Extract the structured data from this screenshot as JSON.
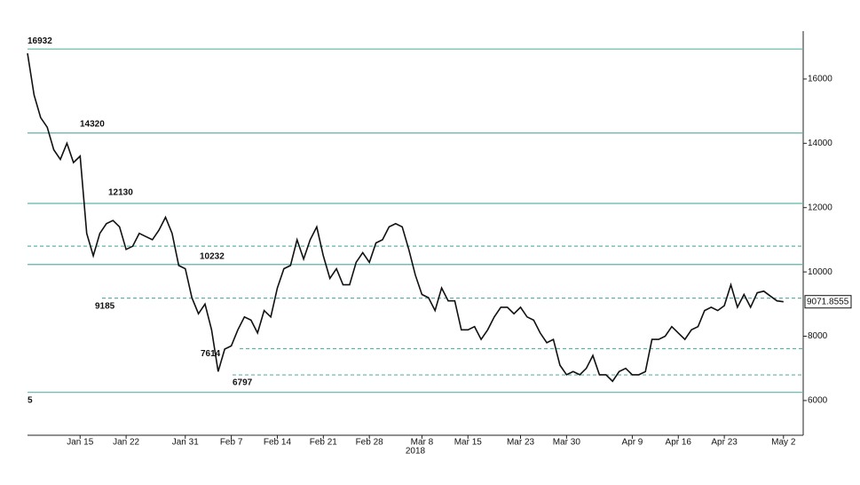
{
  "chart_data": {
    "type": "line",
    "x_label": "2018",
    "x": [
      "2018-01-07",
      "2018-01-08",
      "2018-01-09",
      "2018-01-10",
      "2018-01-11",
      "2018-01-12",
      "2018-01-13",
      "2018-01-14",
      "2018-01-15",
      "2018-01-16",
      "2018-01-17",
      "2018-01-18",
      "2018-01-19",
      "2018-01-20",
      "2018-01-21",
      "2018-01-22",
      "2018-01-23",
      "2018-01-24",
      "2018-01-25",
      "2018-01-26",
      "2018-01-27",
      "2018-01-28",
      "2018-01-29",
      "2018-01-30",
      "2018-01-31",
      "2018-02-01",
      "2018-02-02",
      "2018-02-03",
      "2018-02-04",
      "2018-02-05",
      "2018-02-06",
      "2018-02-07",
      "2018-02-08",
      "2018-02-09",
      "2018-02-10",
      "2018-02-11",
      "2018-02-12",
      "2018-02-13",
      "2018-02-14",
      "2018-02-15",
      "2018-02-16",
      "2018-02-17",
      "2018-02-18",
      "2018-02-19",
      "2018-02-20",
      "2018-02-21",
      "2018-02-22",
      "2018-02-23",
      "2018-02-24",
      "2018-02-25",
      "2018-02-26",
      "2018-02-27",
      "2018-02-28",
      "2018-03-01",
      "2018-03-02",
      "2018-03-03",
      "2018-03-04",
      "2018-03-05",
      "2018-03-06",
      "2018-03-07",
      "2018-03-08",
      "2018-03-09",
      "2018-03-10",
      "2018-03-11",
      "2018-03-12",
      "2018-03-13",
      "2018-03-14",
      "2018-03-15",
      "2018-03-16",
      "2018-03-17",
      "2018-03-18",
      "2018-03-19",
      "2018-03-20",
      "2018-03-21",
      "2018-03-22",
      "2018-03-23",
      "2018-03-24",
      "2018-03-25",
      "2018-03-26",
      "2018-03-27",
      "2018-03-28",
      "2018-03-29",
      "2018-03-30",
      "2018-03-31",
      "2018-04-01",
      "2018-04-02",
      "2018-04-03",
      "2018-04-04",
      "2018-04-05",
      "2018-04-06",
      "2018-04-07",
      "2018-04-08",
      "2018-04-09",
      "2018-04-10",
      "2018-04-11",
      "2018-04-12",
      "2018-04-13",
      "2018-04-14",
      "2018-04-15",
      "2018-04-16",
      "2018-04-17",
      "2018-04-18",
      "2018-04-19",
      "2018-04-20",
      "2018-04-21",
      "2018-04-22",
      "2018-04-23",
      "2018-04-24",
      "2018-04-25",
      "2018-04-26",
      "2018-04-27",
      "2018-04-28",
      "2018-04-29",
      "2018-04-30",
      "2018-05-01",
      "2018-05-02"
    ],
    "series": [
      {
        "color": "#111111",
        "values": [
          16800,
          15500,
          14800,
          14500,
          13800,
          13500,
          14000,
          13400,
          13600,
          11200,
          10500,
          11200,
          11500,
          11600,
          11400,
          10700,
          10800,
          11200,
          11100,
          11000,
          11300,
          11700,
          11200,
          10200,
          10100,
          9200,
          8700,
          9000,
          8200,
          6900,
          7600,
          7700,
          8200,
          8600,
          8500,
          8100,
          8800,
          8600,
          9500,
          10100,
          10200,
          11000,
          10400,
          11000,
          11400,
          10500,
          9800,
          10100,
          9600,
          9600,
          10300,
          10600,
          10300,
          10900,
          11000,
          11400,
          11500,
          11400,
          10700,
          9900,
          9300,
          9200,
          8800,
          9500,
          9100,
          9100,
          8200,
          8200,
          8300,
          7900,
          8200,
          8600,
          8900,
          8900,
          8700,
          8900,
          8600,
          8500,
          8100,
          7800,
          7900,
          7100,
          6800,
          6900,
          6800,
          7000,
          7400,
          6800,
          6800,
          6600,
          6900,
          7000,
          6800,
          6800,
          6900,
          7900,
          7900,
          8000,
          8300,
          8100,
          7900,
          8200,
          8300,
          8800,
          8900,
          8800,
          8950,
          9600,
          8900,
          9300,
          8900,
          9350,
          9400,
          9250,
          9100,
          9071.8555
        ]
      }
    ],
    "xlim": [
      "2018-01-07",
      "2018-05-05"
    ],
    "xticks": [
      {
        "value": "2018-01-15",
        "label": "Jan 15"
      },
      {
        "value": "2018-01-22",
        "label": "Jan 22"
      },
      {
        "value": "2018-01-31",
        "label": "Jan 31"
      },
      {
        "value": "2018-02-07",
        "label": "Feb 7"
      },
      {
        "value": "2018-02-14",
        "label": "Feb 14"
      },
      {
        "value": "2018-02-21",
        "label": "Feb 21"
      },
      {
        "value": "2018-02-28",
        "label": "Feb 28"
      },
      {
        "value": "2018-03-08",
        "label": "Mar 8"
      },
      {
        "value": "2018-03-15",
        "label": "Mar 15"
      },
      {
        "value": "2018-03-23",
        "label": "Mar 23"
      },
      {
        "value": "2018-03-30",
        "label": "Mar 30"
      },
      {
        "value": "2018-04-09",
        "label": "Apr 9"
      },
      {
        "value": "2018-04-16",
        "label": "Apr 16"
      },
      {
        "value": "2018-04-23",
        "label": "Apr 23"
      },
      {
        "value": "2018-05-02",
        "label": "May 2"
      }
    ],
    "ylim": [
      4920,
      17490
    ],
    "yticks": [
      6000,
      8000,
      10000,
      12000,
      14000,
      16000
    ],
    "levels": [
      {
        "value": 16932,
        "style": "solid"
      },
      {
        "value": 14320,
        "style": "solid"
      },
      {
        "value": 12130,
        "style": "solid"
      },
      {
        "value": 10800,
        "style": "dashed",
        "show_label": false
      },
      {
        "value": 10232,
        "style": "solid"
      },
      {
        "value": 9185,
        "style": "dashed"
      },
      {
        "value": 7614,
        "style": "dashed"
      },
      {
        "value": 6797,
        "style": "dashed"
      },
      {
        "value": 6255,
        "label": "5",
        "style": "solid"
      }
    ],
    "level_color": "#5fb3a6"
  }
}
